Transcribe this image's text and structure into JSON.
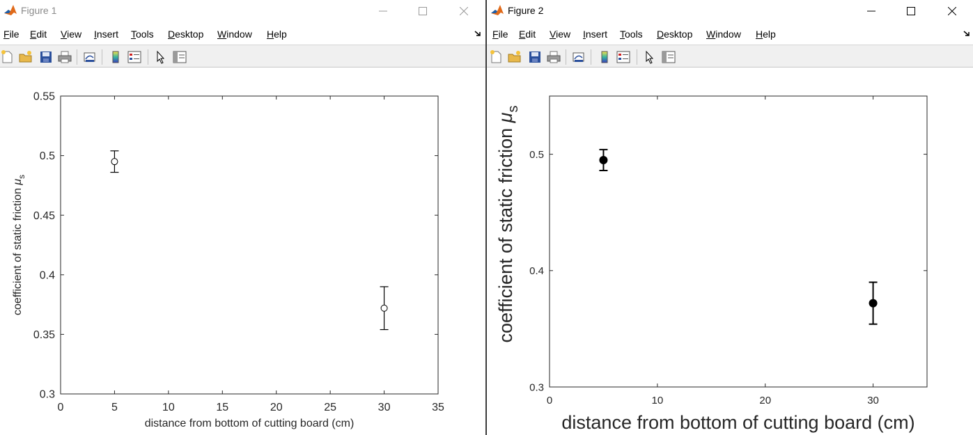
{
  "windows": [
    {
      "title": "Figure 1",
      "menu": [
        {
          "label": "File"
        },
        {
          "label": "Edit"
        },
        {
          "label": "View"
        },
        {
          "label": "Insert"
        },
        {
          "label": "Tools"
        },
        {
          "label": "Desktop"
        },
        {
          "label": "Window"
        },
        {
          "label": "Help"
        }
      ],
      "toolbar_icons": [
        "new-figure-icon",
        "open-file-icon",
        "save-icon",
        "print-icon",
        "link-plot-icon",
        "colorbar-icon",
        "legend-icon",
        "edit-plot-arrow-icon",
        "property-editor-icon"
      ],
      "chart_data": {
        "type": "scatter",
        "xlabel": "distance from bottom of cutting board (cm)",
        "ylabel": "coefficient of static friction",
        "ylabel_symbol": "μ",
        "ylabel_subscript": "s",
        "xlim": [
          0,
          35
        ],
        "ylim": [
          0.3,
          0.55
        ],
        "xticks": [
          "0",
          "5",
          "10",
          "15",
          "20",
          "25",
          "30",
          "35"
        ],
        "yticks": [
          "0.3",
          "0.35",
          "0.4",
          "0.45",
          "0.5",
          "0.55"
        ],
        "marker": "open-circle",
        "points": [
          {
            "x": 5,
            "y": 0.495,
            "err": 0.009
          },
          {
            "x": 30,
            "y": 0.372,
            "err": 0.018
          }
        ]
      }
    },
    {
      "title": "Figure 2",
      "menu": [
        {
          "label": "File"
        },
        {
          "label": "Edit"
        },
        {
          "label": "View"
        },
        {
          "label": "Insert"
        },
        {
          "label": "Tools"
        },
        {
          "label": "Desktop"
        },
        {
          "label": "Window"
        },
        {
          "label": "Help"
        }
      ],
      "toolbar_icons": [
        "new-figure-icon",
        "open-file-icon",
        "save-icon",
        "print-icon",
        "link-plot-icon",
        "colorbar-icon",
        "legend-icon",
        "edit-plot-arrow-icon",
        "property-editor-icon"
      ],
      "chart_data": {
        "type": "scatter",
        "xlabel": "distance from bottom of cutting board (cm)",
        "ylabel": "coefficient of static friction",
        "ylabel_symbol": "μ",
        "ylabel_subscript": "s",
        "xlim": [
          0,
          35
        ],
        "ylim": [
          0.3,
          0.55
        ],
        "xticks": [
          "0",
          "10",
          "20",
          "30"
        ],
        "yticks": [
          "0.3",
          "0.4",
          "0.5"
        ],
        "marker": "filled-circle",
        "points": [
          {
            "x": 5,
            "y": 0.495,
            "err": 0.009
          },
          {
            "x": 30,
            "y": 0.372,
            "err": 0.018
          }
        ]
      }
    }
  ]
}
